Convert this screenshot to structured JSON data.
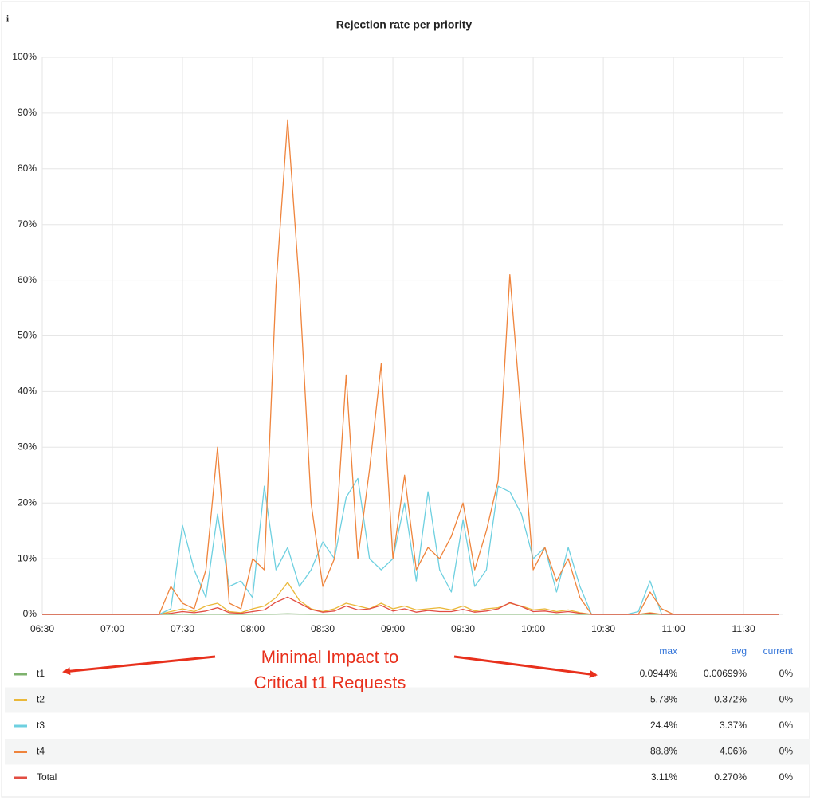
{
  "chart_data": {
    "type": "line",
    "info": "i",
    "title": "Rejection rate per priority",
    "x": [
      "06:30",
      "06:35",
      "06:40",
      "06:45",
      "06:50",
      "06:55",
      "07:00",
      "07:05",
      "07:10",
      "07:15",
      "07:20",
      "07:25",
      "07:30",
      "07:35",
      "07:40",
      "07:45",
      "07:50",
      "07:55",
      "08:00",
      "08:05",
      "08:10",
      "08:15",
      "08:20",
      "08:25",
      "08:30",
      "08:35",
      "08:40",
      "08:45",
      "08:50",
      "08:55",
      "09:00",
      "09:05",
      "09:10",
      "09:15",
      "09:20",
      "09:25",
      "09:30",
      "09:35",
      "09:40",
      "09:45",
      "09:50",
      "09:55",
      "10:00",
      "10:05",
      "10:10",
      "10:15",
      "10:20",
      "10:25",
      "10:30",
      "10:35",
      "10:40",
      "10:45",
      "10:50",
      "10:55",
      "11:00",
      "11:05",
      "11:10",
      "11:15",
      "11:20",
      "11:25",
      "11:30",
      "11:35",
      "11:40",
      "11:45"
    ],
    "xlim": [
      "06:30",
      "11:47"
    ],
    "xticks": [
      "06:30",
      "07:00",
      "07:30",
      "08:00",
      "08:30",
      "09:00",
      "09:30",
      "10:00",
      "10:30",
      "11:00",
      "11:30"
    ],
    "ylim": [
      0,
      100
    ],
    "yticks": [
      {
        "value": 0,
        "label": "0%"
      },
      {
        "value": 10,
        "label": "10%"
      },
      {
        "value": 20,
        "label": "20%"
      },
      {
        "value": 30,
        "label": "30%"
      },
      {
        "value": 40,
        "label": "40%"
      },
      {
        "value": 50,
        "label": "50%"
      },
      {
        "value": 60,
        "label": "60%"
      },
      {
        "value": 70,
        "label": "70%"
      },
      {
        "value": 80,
        "label": "80%"
      },
      {
        "value": 90,
        "label": "90%"
      },
      {
        "value": 100,
        "label": "100%"
      }
    ],
    "grid": true,
    "series": [
      {
        "name": "t1",
        "color": "#7eb26d",
        "values": [
          0,
          0,
          0,
          0,
          0,
          0,
          0,
          0,
          0,
          0,
          0,
          0,
          0.01,
          0,
          0.02,
          0.03,
          0,
          0,
          0.01,
          0.02,
          0.05,
          0.0944,
          0.04,
          0.02,
          0.01,
          0.02,
          0.03,
          0.02,
          0.01,
          0.02,
          0.01,
          0.02,
          0.01,
          0.01,
          0.02,
          0.01,
          0.02,
          0.01,
          0.01,
          0.02,
          0.03,
          0.02,
          0.01,
          0.01,
          0,
          0.01,
          0,
          0,
          0,
          0,
          0,
          0,
          0,
          0,
          0,
          0,
          0,
          0,
          0,
          0,
          0,
          0,
          0,
          0
        ]
      },
      {
        "name": "t2",
        "color": "#eab839",
        "values": [
          0,
          0,
          0,
          0,
          0,
          0,
          0,
          0,
          0,
          0,
          0,
          0.5,
          1,
          0.5,
          1.5,
          2,
          0.5,
          0.3,
          1,
          1.5,
          3,
          5.73,
          2.5,
          1,
          0.5,
          1,
          2,
          1.5,
          1,
          2,
          1,
          1.5,
          0.8,
          1,
          1.2,
          0.8,
          1.5,
          0.6,
          1,
          1.2,
          2,
          1.5,
          0.8,
          1,
          0.5,
          0.8,
          0.3,
          0,
          0,
          0,
          0,
          0,
          0.3,
          0,
          0,
          0,
          0,
          0,
          0,
          0,
          0,
          0,
          0,
          0
        ]
      },
      {
        "name": "t3",
        "color": "#6ed0e0",
        "values": [
          0,
          0,
          0,
          0,
          0,
          0,
          0,
          0,
          0,
          0,
          0,
          1,
          16,
          8,
          3,
          18,
          5,
          6,
          3,
          23,
          8,
          12,
          5,
          8,
          13,
          10,
          21,
          24.4,
          10,
          8,
          10,
          20,
          6,
          22,
          8,
          4,
          17,
          5,
          8,
          23,
          22,
          18,
          10,
          12,
          4,
          12,
          5,
          0,
          0,
          0,
          0,
          0.5,
          6,
          0,
          0,
          0,
          0,
          0,
          0,
          0,
          0,
          0,
          0,
          0
        ]
      },
      {
        "name": "t4",
        "color": "#ef843c",
        "values": [
          0,
          0,
          0,
          0,
          0,
          0,
          0,
          0,
          0,
          0,
          0,
          5,
          2,
          1,
          8,
          30,
          2,
          1,
          10,
          8,
          59,
          88.8,
          59,
          20,
          5,
          10,
          43,
          10,
          26,
          45,
          10,
          25,
          8,
          12,
          10,
          14,
          20,
          8,
          15,
          24,
          61,
          35,
          8,
          12,
          6,
          10,
          3,
          0,
          0,
          0,
          0,
          0,
          4,
          1,
          0,
          0,
          0,
          0,
          0,
          0,
          0,
          0,
          0,
          0
        ]
      },
      {
        "name": "Total",
        "color": "#e24d42",
        "values": [
          0,
          0,
          0,
          0,
          0,
          0,
          0,
          0,
          0,
          0,
          0,
          0.2,
          0.5,
          0.3,
          0.6,
          1.2,
          0.3,
          0.2,
          0.5,
          0.8,
          2.2,
          3.11,
          2,
          0.9,
          0.4,
          0.6,
          1.5,
          0.8,
          1,
          1.6,
          0.6,
          1,
          0.4,
          0.7,
          0.5,
          0.5,
          0.9,
          0.4,
          0.6,
          1,
          2.1,
          1.4,
          0.5,
          0.6,
          0.3,
          0.5,
          0.2,
          0,
          0,
          0,
          0,
          0,
          0.2,
          0,
          0,
          0,
          0,
          0,
          0,
          0,
          0,
          0,
          0,
          0
        ]
      }
    ],
    "legend": {
      "headers": [
        "max",
        "avg",
        "current"
      ],
      "rows": [
        [
          "0.0944%",
          "0.00699%",
          "0%"
        ],
        [
          "5.73%",
          "0.372%",
          "0%"
        ],
        [
          "24.4%",
          "3.37%",
          "0%"
        ],
        [
          "88.8%",
          "4.06%",
          "0%"
        ],
        [
          "3.11%",
          "0.270%",
          "0%"
        ]
      ]
    },
    "annotation": [
      "Minimal Impact to",
      "Critical t1 Requests"
    ]
  }
}
